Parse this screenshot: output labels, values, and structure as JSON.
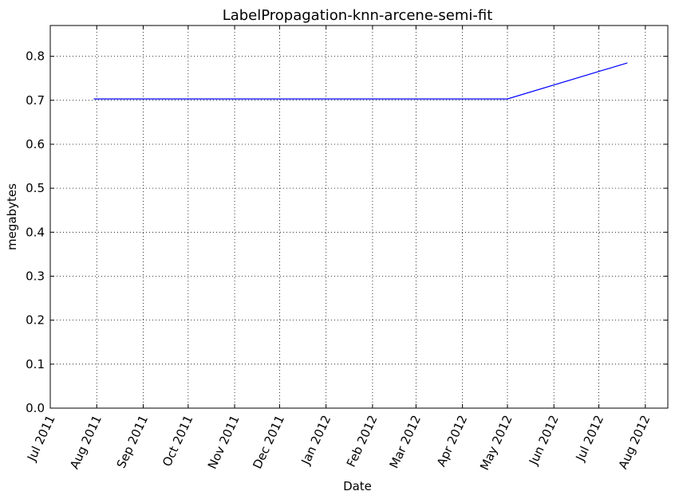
{
  "chart_data": {
    "type": "line",
    "title": "LabelPropagation-knn-arcene-semi-fit",
    "xlabel": "Date",
    "ylabel": "megabytes",
    "x_tick_labels": [
      "Jul 2011",
      "Aug 2011",
      "Sep 2011",
      "Oct 2011",
      "Nov 2011",
      "Dec 2011",
      "Jan 2012",
      "Feb 2012",
      "Mar 2012",
      "Apr 2012",
      "May 2012",
      "Jun 2012",
      "Jul 2012",
      "Aug 2012"
    ],
    "x_ticks": [
      "2011-07-01",
      "2011-08-01",
      "2011-09-01",
      "2011-10-01",
      "2011-11-01",
      "2011-12-01",
      "2012-01-01",
      "2012-02-01",
      "2012-03-01",
      "2012-04-01",
      "2012-05-01",
      "2012-06-01",
      "2012-07-01",
      "2012-08-01"
    ],
    "y_tick_labels": [
      "0.0",
      "0.1",
      "0.2",
      "0.3",
      "0.4",
      "0.5",
      "0.6",
      "0.7",
      "0.8"
    ],
    "y_ticks": [
      0,
      0.1,
      0.2,
      0.3,
      0.4,
      0.5,
      0.6,
      0.7,
      0.8
    ],
    "xlim": [
      "2011-07-01",
      "2012-08-16"
    ],
    "ylim": [
      0,
      0.87
    ],
    "grid": true,
    "series": [
      {
        "color": "#0000ff",
        "x": [
          "2011-07-30",
          "2012-05-01",
          "2012-07-20"
        ],
        "y": [
          0.703,
          0.703,
          0.785
        ]
      }
    ]
  }
}
